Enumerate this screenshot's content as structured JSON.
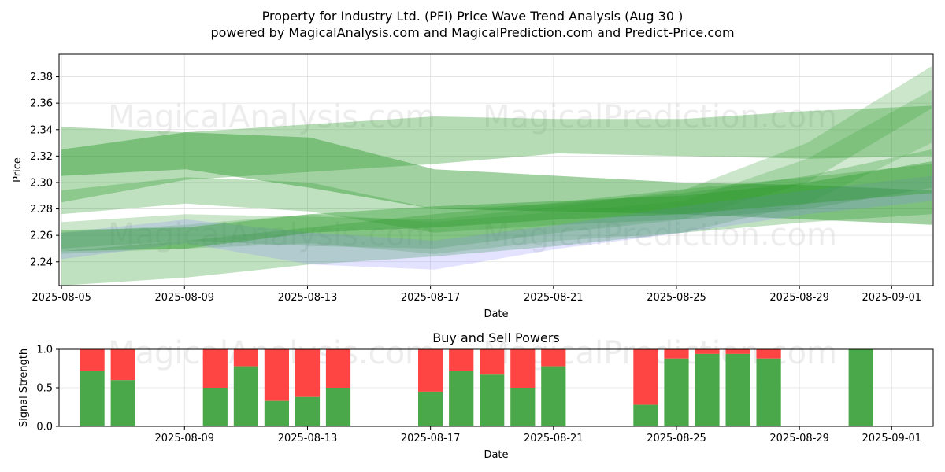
{
  "title_line1": "Property for Industry Ltd. (PFI) Price Wave Trend Analysis (Aug 30 )",
  "title_line2": "powered by MagicalAnalysis.com and MagicalPrediction.com and Predict-Price.com",
  "watermarks": [
    "MagicalAnalysis.com",
    "MagicalPrediction.com"
  ],
  "colors": {
    "band_green": "#2e9a2e",
    "band_blue": "#8080ff",
    "buy": "#4aa84a",
    "sell": "#ff4444",
    "grid": "#e0e0e0"
  },
  "chart_data": [
    {
      "type": "area",
      "name": "price-wave-bands",
      "xlabel": "Date",
      "ylabel": "Price",
      "xlim": [
        "2025-08-05",
        "2025-09-02"
      ],
      "ylim": [
        2.222,
        2.397
      ],
      "x_ticks": [
        "2025-08-05",
        "2025-08-09",
        "2025-08-13",
        "2025-08-17",
        "2025-08-21",
        "2025-08-25",
        "2025-08-29",
        "2025-09-01"
      ],
      "y_ticks": [
        2.24,
        2.26,
        2.28,
        2.3,
        2.32,
        2.34,
        2.36,
        2.38
      ],
      "grid": true,
      "bands": [
        {
          "color": "green",
          "opacity": 0.35,
          "upper": [
            [
              0,
              2.342
            ],
            [
              7,
              2.338
            ],
            [
              14,
              2.344
            ],
            [
              21,
              2.35
            ],
            [
              28,
              2.348
            ],
            [
              35,
              2.348
            ],
            [
              42,
              2.354
            ],
            [
              49,
              2.358
            ]
          ],
          "lower": [
            [
              0,
              2.285
            ],
            [
              7,
              2.302
            ],
            [
              14,
              2.308
            ],
            [
              21,
              2.314
            ],
            [
              28,
              2.322
            ],
            [
              35,
              2.32
            ],
            [
              42,
              2.318
            ],
            [
              49,
              2.32
            ]
          ]
        },
        {
          "color": "green",
          "opacity": 0.45,
          "upper": [
            [
              0,
              2.325
            ],
            [
              7,
              2.338
            ],
            [
              14,
              2.334
            ],
            [
              21,
              2.31
            ],
            [
              28,
              2.305
            ],
            [
              35,
              2.3
            ],
            [
              42,
              2.298
            ],
            [
              49,
              2.294
            ]
          ],
          "lower": [
            [
              0,
              2.305
            ],
            [
              7,
              2.31
            ],
            [
              14,
              2.296
            ],
            [
              21,
              2.28
            ],
            [
              28,
              2.278
            ],
            [
              35,
              2.276
            ],
            [
              42,
              2.272
            ],
            [
              49,
              2.268
            ]
          ]
        },
        {
          "color": "green",
          "opacity": 0.3,
          "upper": [
            [
              0,
              2.248
            ],
            [
              7,
              2.256
            ],
            [
              14,
              2.266
            ],
            [
              21,
              2.276
            ],
            [
              28,
              2.285
            ],
            [
              35,
              2.295
            ],
            [
              42,
              2.304
            ],
            [
              49,
              2.314
            ]
          ],
          "lower": [
            [
              0,
              2.222
            ],
            [
              7,
              2.228
            ],
            [
              14,
              2.238
            ],
            [
              21,
              2.244
            ],
            [
              28,
              2.252
            ],
            [
              35,
              2.262
            ],
            [
              42,
              2.27
            ],
            [
              49,
              2.276
            ]
          ]
        },
        {
          "color": "green",
          "opacity": 0.3,
          "upper": [
            [
              0,
              2.294
            ],
            [
              7,
              2.304
            ],
            [
              14,
              2.3
            ],
            [
              21,
              2.28
            ],
            [
              28,
              2.284
            ],
            [
              35,
              2.292
            ],
            [
              42,
              2.305
            ],
            [
              49,
              2.325
            ]
          ],
          "lower": [
            [
              0,
              2.276
            ],
            [
              7,
              2.284
            ],
            [
              14,
              2.278
            ],
            [
              21,
              2.262
            ],
            [
              28,
              2.268
            ],
            [
              35,
              2.272
            ],
            [
              42,
              2.28
            ],
            [
              49,
              2.296
            ]
          ]
        },
        {
          "color": "green",
          "opacity": 0.25,
          "upper": [
            [
              0,
              2.27
            ],
            [
              7,
              2.276
            ],
            [
              14,
              2.274
            ],
            [
              21,
              2.272
            ],
            [
              28,
              2.282
            ],
            [
              35,
              2.294
            ],
            [
              42,
              2.33
            ],
            [
              49,
              2.388
            ]
          ],
          "lower": [
            [
              0,
              2.25
            ],
            [
              7,
              2.256
            ],
            [
              14,
              2.252
            ],
            [
              21,
              2.25
            ],
            [
              28,
              2.262
            ],
            [
              35,
              2.272
            ],
            [
              42,
              2.3
            ],
            [
              49,
              2.356
            ]
          ]
        },
        {
          "color": "green",
          "opacity": 0.22,
          "upper": [
            [
              0,
              2.262
            ],
            [
              7,
              2.268
            ],
            [
              14,
              2.276
            ],
            [
              21,
              2.27
            ],
            [
              28,
              2.278
            ],
            [
              35,
              2.286
            ],
            [
              42,
              2.318
            ],
            [
              49,
              2.37
            ]
          ],
          "lower": [
            [
              0,
              2.246
            ],
            [
              7,
              2.25
            ],
            [
              14,
              2.254
            ],
            [
              21,
              2.246
            ],
            [
              28,
              2.256
            ],
            [
              35,
              2.262
            ],
            [
              42,
              2.284
            ],
            [
              49,
              2.33
            ]
          ]
        },
        {
          "color": "blue",
          "opacity": 0.22,
          "upper": [
            [
              0,
              2.262
            ],
            [
              7,
              2.272
            ],
            [
              14,
              2.262
            ],
            [
              21,
              2.256
            ],
            [
              28,
              2.268
            ],
            [
              35,
              2.282
            ],
            [
              42,
              2.294
            ],
            [
              49,
              2.305
            ]
          ],
          "lower": [
            [
              0,
              2.242
            ],
            [
              7,
              2.254
            ],
            [
              14,
              2.238
            ],
            [
              21,
              2.234
            ],
            [
              28,
              2.25
            ],
            [
              35,
              2.262
            ],
            [
              42,
              2.276
            ],
            [
              49,
              2.286
            ]
          ]
        },
        {
          "color": "green",
          "opacity": 0.4,
          "upper": [
            [
              0,
              2.264
            ],
            [
              7,
              2.266
            ],
            [
              14,
              2.276
            ],
            [
              21,
              2.282
            ],
            [
              28,
              2.286
            ],
            [
              35,
              2.29
            ],
            [
              42,
              2.3
            ],
            [
              49,
              2.316
            ]
          ],
          "lower": [
            [
              0,
              2.248
            ],
            [
              7,
              2.25
            ],
            [
              14,
              2.262
            ],
            [
              21,
              2.266
            ],
            [
              28,
              2.272
            ],
            [
              35,
              2.276
            ],
            [
              42,
              2.284
            ],
            [
              49,
              2.292
            ]
          ]
        }
      ]
    },
    {
      "type": "bar",
      "name": "buy-sell-powers",
      "title": "Buy and Sell Powers",
      "xlabel": "Date",
      "ylabel": "Signal Strength",
      "xlim": [
        "2025-08-05",
        "2025-09-02"
      ],
      "ylim": [
        0,
        1.0
      ],
      "x_ticks": [
        "2025-08-09",
        "2025-08-13",
        "2025-08-17",
        "2025-08-21",
        "2025-08-25",
        "2025-08-29",
        "2025-09-01"
      ],
      "y_ticks": [
        0.0,
        0.5,
        1.0
      ],
      "y_tick_labels": [
        "0.0",
        "0.5",
        "1.0"
      ],
      "series": [
        {
          "name": "Buy",
          "color": "#4aa84a"
        },
        {
          "name": "Sell",
          "color": "#ff4444"
        }
      ],
      "bars": [
        {
          "date": "2025-08-06",
          "buy": 0.72
        },
        {
          "date": "2025-08-07",
          "buy": 0.6
        },
        {
          "date": "2025-08-10",
          "buy": 0.5
        },
        {
          "date": "2025-08-11",
          "buy": 0.78
        },
        {
          "date": "2025-08-12",
          "buy": 0.33
        },
        {
          "date": "2025-08-13",
          "buy": 0.38
        },
        {
          "date": "2025-08-14",
          "buy": 0.5
        },
        {
          "date": "2025-08-17",
          "buy": 0.45
        },
        {
          "date": "2025-08-18",
          "buy": 0.72
        },
        {
          "date": "2025-08-19",
          "buy": 0.67
        },
        {
          "date": "2025-08-20",
          "buy": 0.5
        },
        {
          "date": "2025-08-21",
          "buy": 0.78
        },
        {
          "date": "2025-08-24",
          "buy": 0.28
        },
        {
          "date": "2025-08-25",
          "buy": 0.88
        },
        {
          "date": "2025-08-26",
          "buy": 0.94
        },
        {
          "date": "2025-08-27",
          "buy": 0.94
        },
        {
          "date": "2025-08-28",
          "buy": 0.88
        },
        {
          "date": "2025-08-31",
          "buy": 1.0
        }
      ]
    }
  ]
}
